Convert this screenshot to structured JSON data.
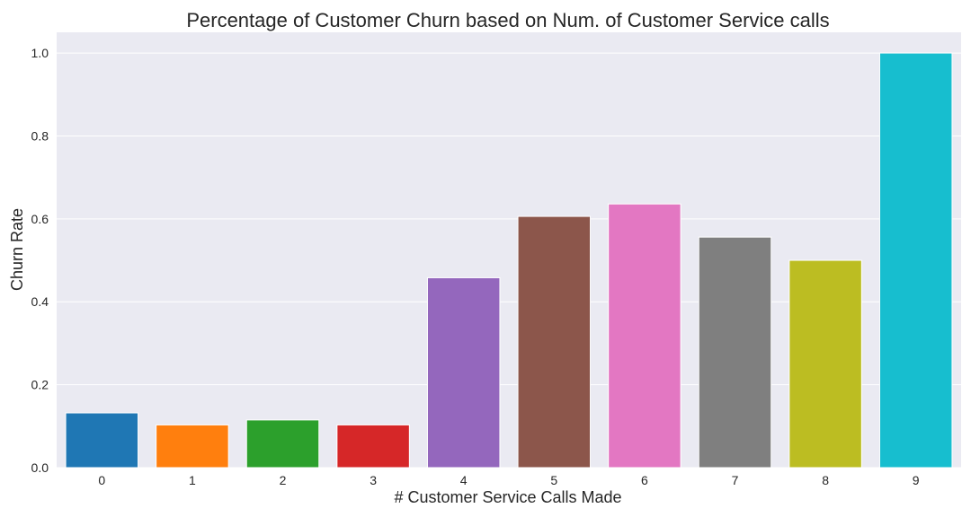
{
  "chart_data": {
    "type": "bar",
    "title": "Percentage of Customer Churn based on Num. of Customer Service calls",
    "xlabel": "# Customer Service Calls Made",
    "ylabel": "Churn Rate",
    "categories": [
      "0",
      "1",
      "2",
      "3",
      "4",
      "5",
      "6",
      "7",
      "8",
      "9"
    ],
    "values": [
      0.132,
      0.103,
      0.115,
      0.103,
      0.458,
      0.606,
      0.636,
      0.556,
      0.5,
      1.0
    ],
    "colors": [
      "#1f77b4",
      "#ff7f0e",
      "#2ca02c",
      "#d62728",
      "#9467bd",
      "#8c564b",
      "#e377c2",
      "#7f7f7f",
      "#bcbd22",
      "#17becf"
    ],
    "ylim": [
      0,
      1.05
    ],
    "yticks": [
      "0.0",
      "0.2",
      "0.4",
      "0.6",
      "0.8",
      "1.0"
    ],
    "grid": true,
    "style": {
      "plot_background": "#eaeaf2",
      "grid_color": "#ffffff"
    }
  }
}
